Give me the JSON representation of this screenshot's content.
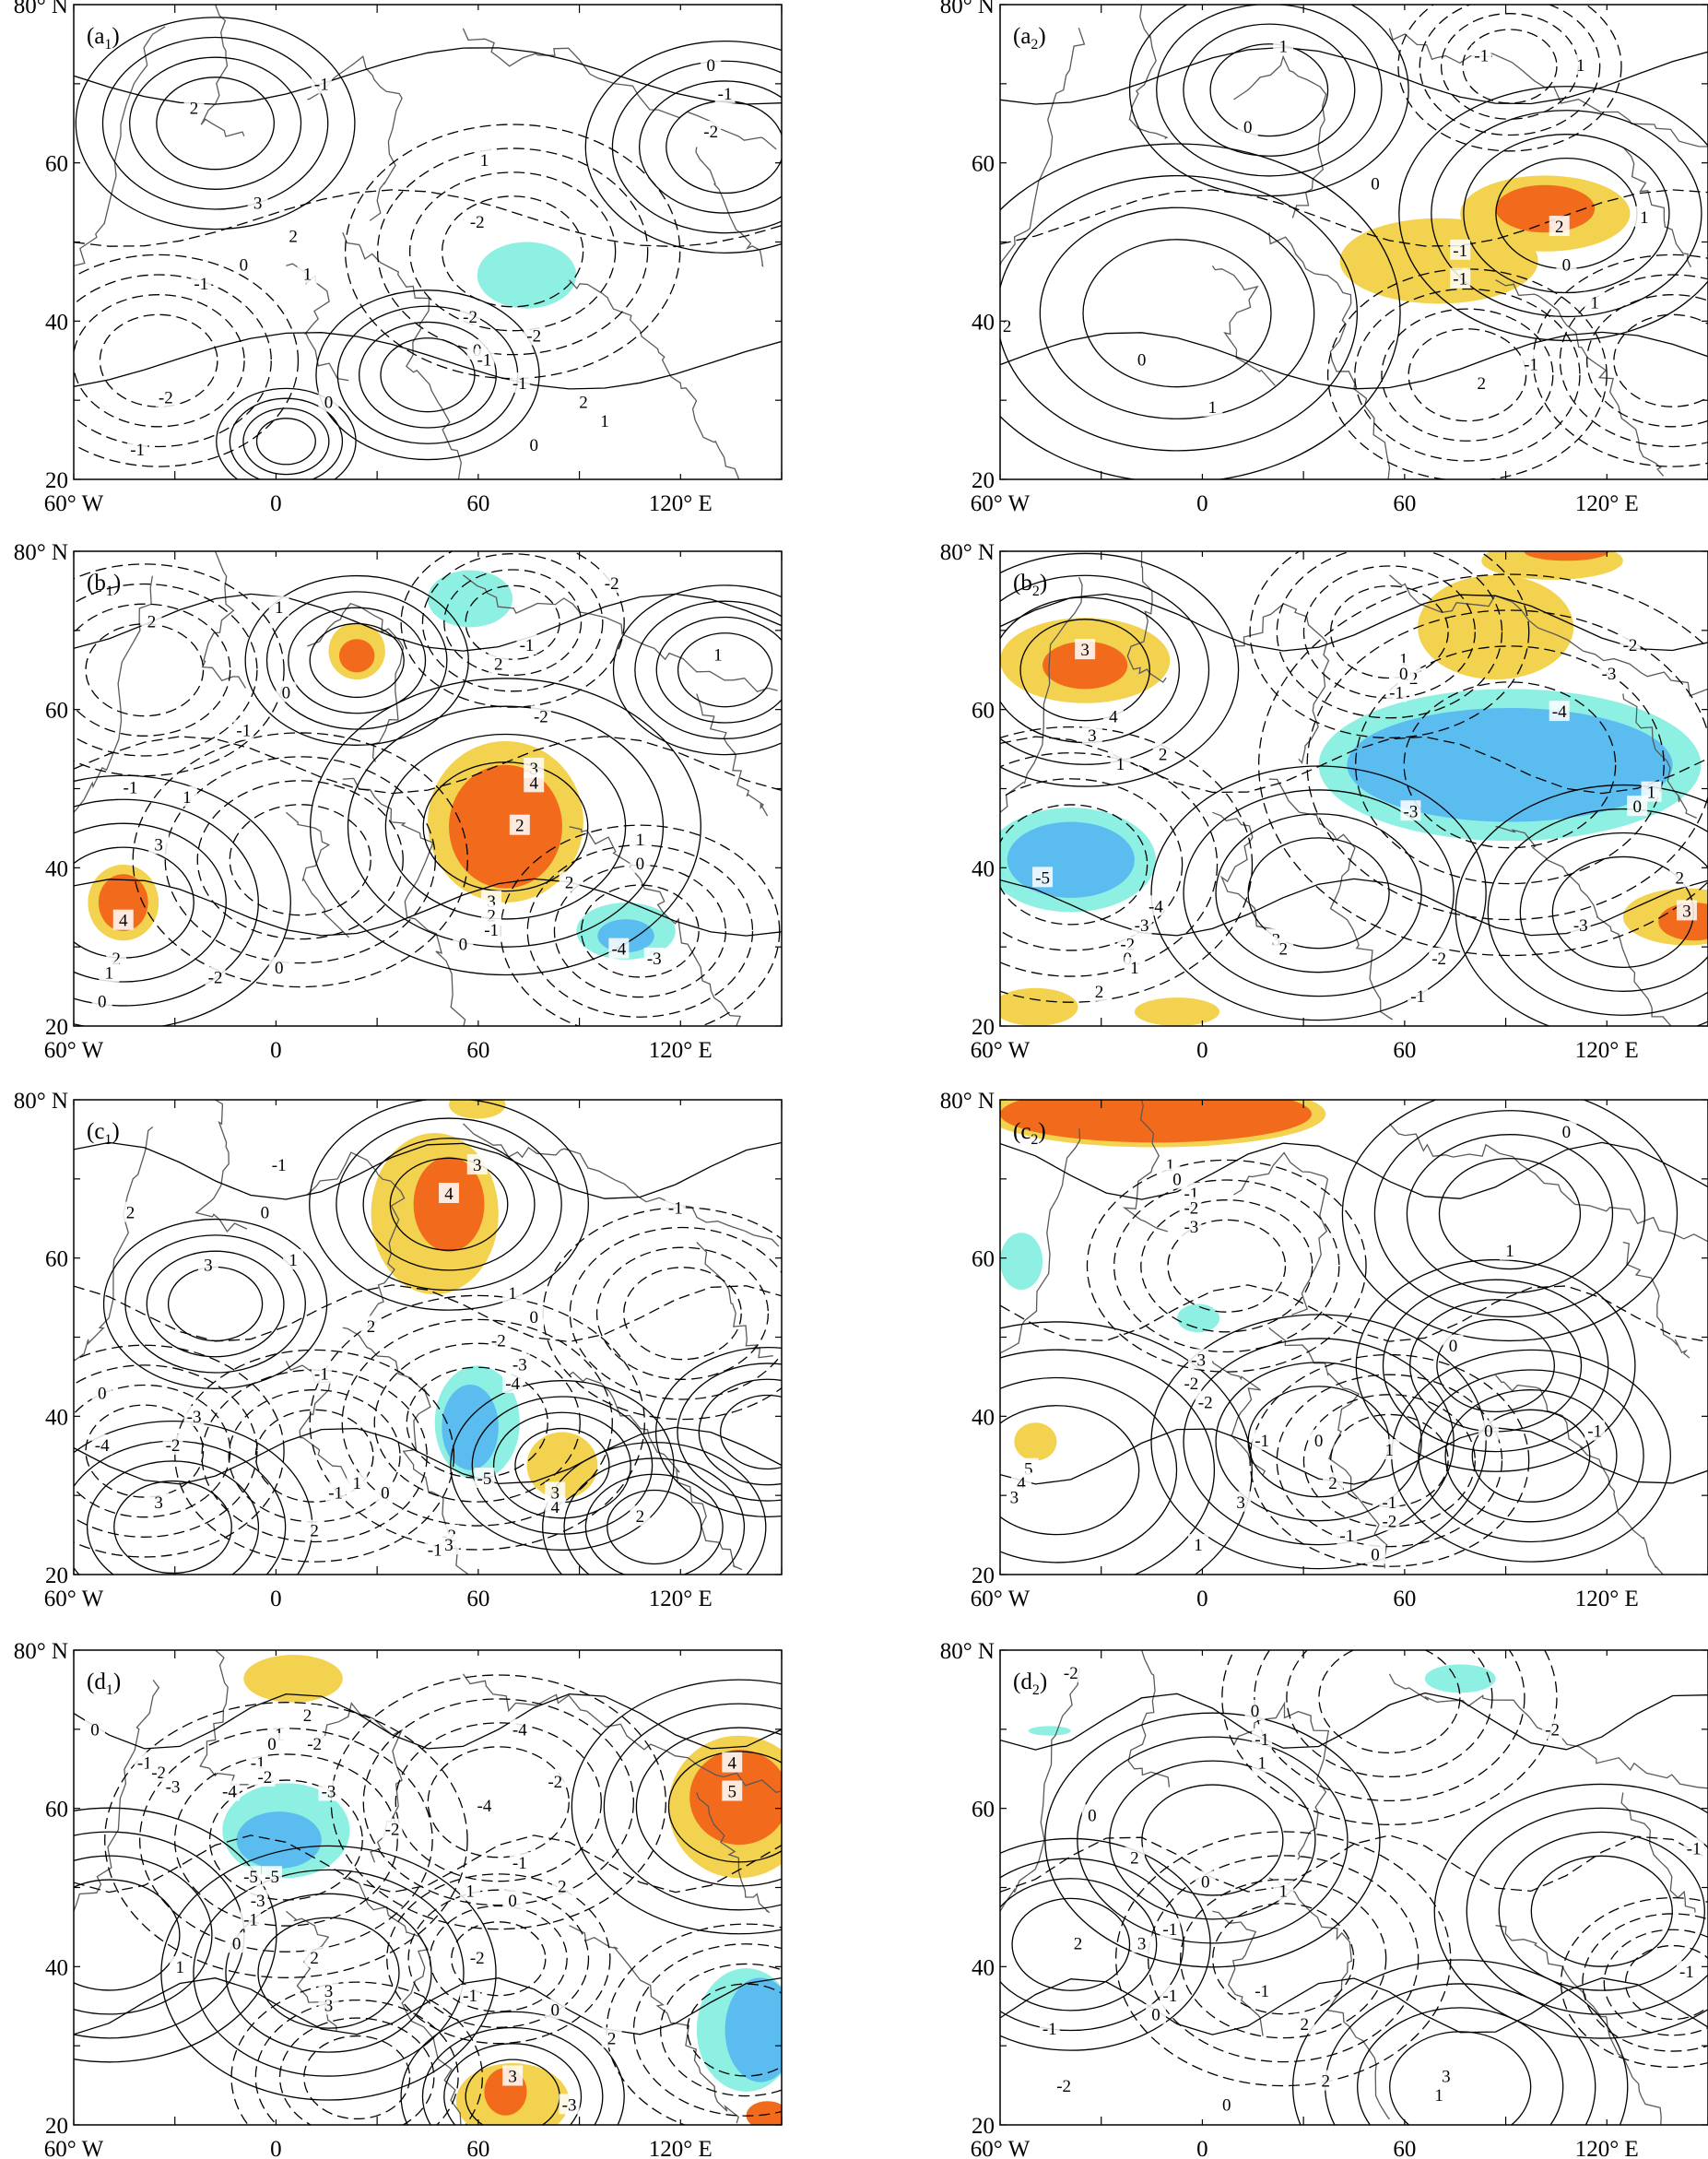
{
  "axes": {
    "lat_labels": [
      "20",
      "40",
      "60",
      "80° N"
    ],
    "lon_labels": [
      "60° W",
      "0",
      "60",
      "120° E"
    ]
  },
  "colors": {
    "warm_light": "#f2d24e",
    "warm_strong": "#f26a1b",
    "cool_light": "#8ef0e2",
    "cool_strong": "#5bbcf0",
    "contour": "#000000",
    "coast": "#5a5a5a"
  },
  "panels": [
    {
      "id": "a1",
      "label_main": "(a",
      "label_sub": "1",
      "label_close": ")",
      "contour_labels": [
        "0",
        "-1",
        "-1",
        "-2",
        "2",
        "3",
        "2",
        "1",
        "0",
        "-1",
        "-2",
        "1",
        "-2",
        "-1",
        "0",
        "-2",
        "-1",
        "-1",
        "-2",
        "0",
        "1",
        "2",
        "0"
      ]
    },
    {
      "id": "a2",
      "label_main": "(a",
      "label_sub": "2",
      "label_close": ")",
      "contour_labels": [
        "1",
        "-1",
        "1",
        "0",
        "0",
        "2",
        "-1",
        "1",
        "1",
        "0",
        "-1",
        "2",
        "2",
        "-1",
        "0",
        "1"
      ]
    },
    {
      "id": "b1",
      "label_main": "(b",
      "label_sub": "1",
      "label_close": ")",
      "contour_labels": [
        "1",
        "2",
        "-2",
        "-1",
        "0",
        "2",
        "1",
        "-1",
        "-2",
        "3",
        "4",
        "2",
        "3",
        "2",
        "0",
        "1",
        "0",
        "-4",
        "-3",
        "-1",
        "1",
        "3",
        "4",
        "2",
        "1",
        "0",
        "-2",
        "0",
        "-1",
        "2"
      ]
    },
    {
      "id": "b2",
      "label_main": "(b",
      "label_sub": "2",
      "label_close": ")",
      "contour_labels": [
        "3",
        "4",
        "3",
        "1",
        "2",
        "-2",
        "-2",
        "1",
        "0",
        "-1",
        "-3",
        "-4",
        "-3",
        "1",
        "0",
        "-5",
        "-4",
        "-3",
        "-2",
        "0",
        "1",
        "2",
        "3",
        "-2",
        "-1",
        "-3",
        "2",
        "3",
        "2"
      ]
    },
    {
      "id": "c1",
      "label_main": "(c",
      "label_sub": "1",
      "label_close": ")",
      "contour_labels": [
        "-1",
        "0",
        "2",
        "3",
        "1",
        "4",
        "3",
        "-1",
        "1",
        "0",
        "2",
        "-1",
        "-2",
        "-3",
        "-4",
        "-5",
        "4",
        "3",
        "0",
        "-3",
        "-2",
        "-4",
        "3",
        "2",
        "1",
        "-1",
        "0",
        "2",
        "-2",
        "-1",
        "3"
      ]
    },
    {
      "id": "c2",
      "label_main": "(c",
      "label_sub": "2",
      "label_close": ")",
      "contour_labels": [
        "0",
        "1",
        "0",
        "-1",
        "-2",
        "-3",
        "1",
        "0",
        "-2",
        "-3",
        "-2",
        "-1",
        "0",
        "1",
        "2",
        "-1",
        "3",
        "-2",
        "-1",
        "0",
        "1",
        "5",
        "4",
        "3",
        "0",
        "-1"
      ]
    },
    {
      "id": "d1",
      "label_main": "(d",
      "label_sub": "1",
      "label_close": ")",
      "contour_labels": [
        "0",
        "-1",
        "-2",
        "-3",
        "-4",
        "-5",
        "-2",
        "-3",
        "-2",
        "-4",
        "2",
        "1",
        "0",
        "-1",
        "-2",
        "4",
        "5",
        "-1",
        "0",
        "-2",
        "-4",
        "-5",
        "-3",
        "-1",
        "1",
        "3",
        "2",
        "0",
        "3",
        "2",
        "1",
        "-1",
        "-2",
        "0",
        "3",
        "2",
        "-3"
      ]
    },
    {
      "id": "d2",
      "label_main": "(d",
      "label_sub": "2",
      "label_close": ")",
      "contour_labels": [
        "-2",
        "0",
        "-1",
        "-2",
        "1",
        "0",
        "2",
        "3",
        "2",
        "-1",
        "0",
        "1",
        "-1",
        "0",
        "-1",
        "2",
        "3",
        "2",
        "1",
        "0",
        "-1",
        "-2",
        "-1",
        "-1"
      ]
    }
  ]
}
